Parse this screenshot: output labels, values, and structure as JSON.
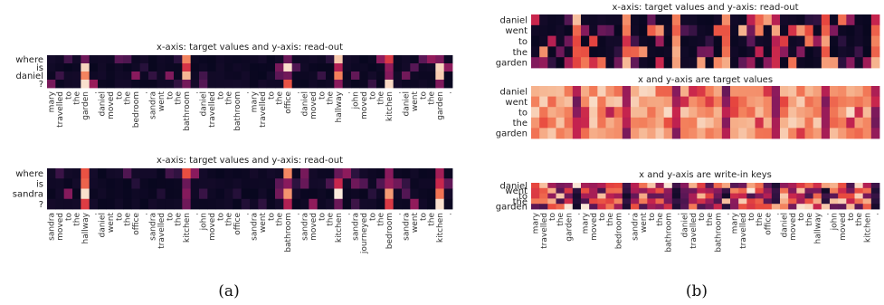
{
  "captions": [
    "(a)",
    "(b)"
  ],
  "chart_data": [
    {
      "type": "heatmap",
      "title": "x-axis: target values and y-axis: read-out",
      "y_tokens": [
        "where",
        "is",
        "daniel",
        "?"
      ],
      "x_tokens": [
        "mary",
        "travelled",
        "to",
        "the",
        "garden",
        ".",
        "daniel",
        "moved",
        "to",
        "the",
        "bedroom",
        ".",
        "sandra",
        "went",
        "to",
        "the",
        "bathroom",
        ".",
        "daniel",
        "travelled",
        "to",
        "the",
        "bathroom",
        ".",
        "mary",
        "travelled",
        "to",
        "the",
        "office",
        ".",
        "daniel",
        "moved",
        "to",
        "the",
        "hallway",
        ".",
        "john",
        "moved",
        "to",
        "the",
        "kitchen",
        ".",
        "daniel",
        "went",
        "to",
        "the",
        "garden",
        "."
      ],
      "hot_columns": [
        4,
        16,
        28,
        34,
        40,
        46
      ]
    },
    {
      "type": "heatmap",
      "title": "x-axis: target values and y-axis: read-out",
      "y_tokens": [
        "where",
        "is",
        "sandra",
        "?"
      ],
      "x_tokens": [
        "sandra",
        "moved",
        "to",
        "the",
        "hallway",
        ".",
        "daniel",
        "went",
        "to",
        "the",
        "office",
        ".",
        "sandra",
        "travelled",
        "to",
        "the",
        "kitchen",
        ".",
        "john",
        "moved",
        "to",
        "the",
        "office",
        ".",
        "sandra",
        "went",
        "to",
        "the",
        "bathroom",
        ".",
        "sandra",
        "moved",
        "to",
        "the",
        "kitchen",
        ".",
        "sandra",
        "journeyed",
        "to",
        "the",
        "bedroom",
        ".",
        "sandra",
        "went",
        "to",
        "the",
        "kitchen",
        "."
      ],
      "hot_columns": [
        4,
        16,
        28,
        34,
        40,
        46
      ]
    },
    {
      "type": "heatmap",
      "title": "x-axis: target values and y-axis: read-out",
      "y_tokens": [
        "daniel",
        "went",
        "to",
        "the",
        "garden"
      ],
      "x_tokens": [
        "mary",
        "travelled",
        "to",
        "the",
        "garden",
        ".",
        "mary",
        "moved",
        "to",
        "the",
        "bedroom",
        ".",
        "sandra",
        "went",
        "to",
        "the",
        "bathroom",
        ".",
        "daniel",
        "travelled",
        "to",
        "the",
        "bathroom",
        ".",
        "mary",
        "travelled",
        "to",
        "the",
        "office",
        ".",
        "daniel",
        "moved",
        "to",
        "the",
        "hallway",
        ".",
        "john",
        "moved",
        "to",
        "the",
        "kitchen",
        "."
      ],
      "style": "dark"
    },
    {
      "type": "heatmap",
      "title": "x and y-axis are target values",
      "y_tokens": [
        "daniel",
        "went",
        "to",
        "the",
        "garden"
      ],
      "x_tokens": [
        "mary",
        "travelled",
        "to",
        "the",
        "garden",
        ".",
        "mary",
        "moved",
        "to",
        "the",
        "bedroom",
        ".",
        "sandra",
        "went",
        "to",
        "the",
        "bathroom",
        ".",
        "daniel",
        "travelled",
        "to",
        "the",
        "bathroom",
        ".",
        "mary",
        "travelled",
        "to",
        "the",
        "office",
        ".",
        "daniel",
        "moved",
        "to",
        "the",
        "hallway",
        ".",
        "john",
        "moved",
        "to",
        "the",
        "kitchen",
        "."
      ],
      "style": "light"
    },
    {
      "type": "heatmap",
      "title": "x and y-axis are write-in keys",
      "y_tokens": [
        "daniel",
        "went",
        "to",
        "the",
        "garden"
      ],
      "x_tokens": [
        "mary",
        "travelled",
        "to",
        "the",
        "garden",
        ".",
        "mary",
        "moved",
        "to",
        "the",
        "bedroom",
        ".",
        "sandra",
        "went",
        "to",
        "the",
        "bathroom",
        ".",
        "daniel",
        "travelled",
        "to",
        "the",
        "bathroom",
        ".",
        "mary",
        "travelled",
        "to",
        "the",
        "office",
        ".",
        "daniel",
        "moved",
        "to",
        "the",
        "hallway",
        ".",
        "john",
        "moved",
        "to",
        "the",
        "kitchen",
        "."
      ],
      "style": "medium"
    }
  ]
}
